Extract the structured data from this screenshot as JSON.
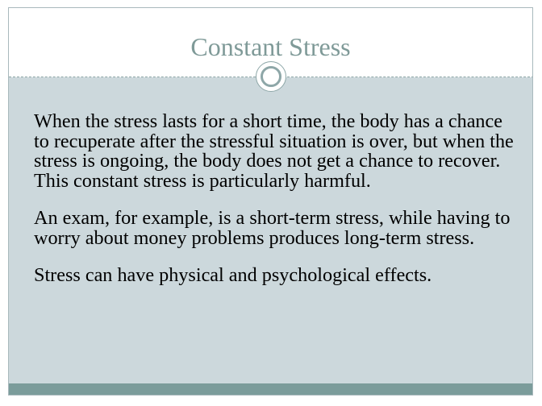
{
  "slide": {
    "title": "Constant Stress",
    "paragraphs": [
      "When the stress lasts for a short time, the body has a chance to recuperate after the stressful situation is over, but when the stress is ongoing, the body does not get a chance to recover.  This constant stress is particularly harmful.",
      "An exam, for example, is a short-term stress, while having to worry about money problems produces long-term stress.",
      "Stress can have physical and psychological effects."
    ]
  },
  "colors": {
    "title": "#7f9a98",
    "content_background": "#ccd8dc",
    "bottom_band": "#7b9c9b",
    "divider": "#8ea7a8"
  }
}
